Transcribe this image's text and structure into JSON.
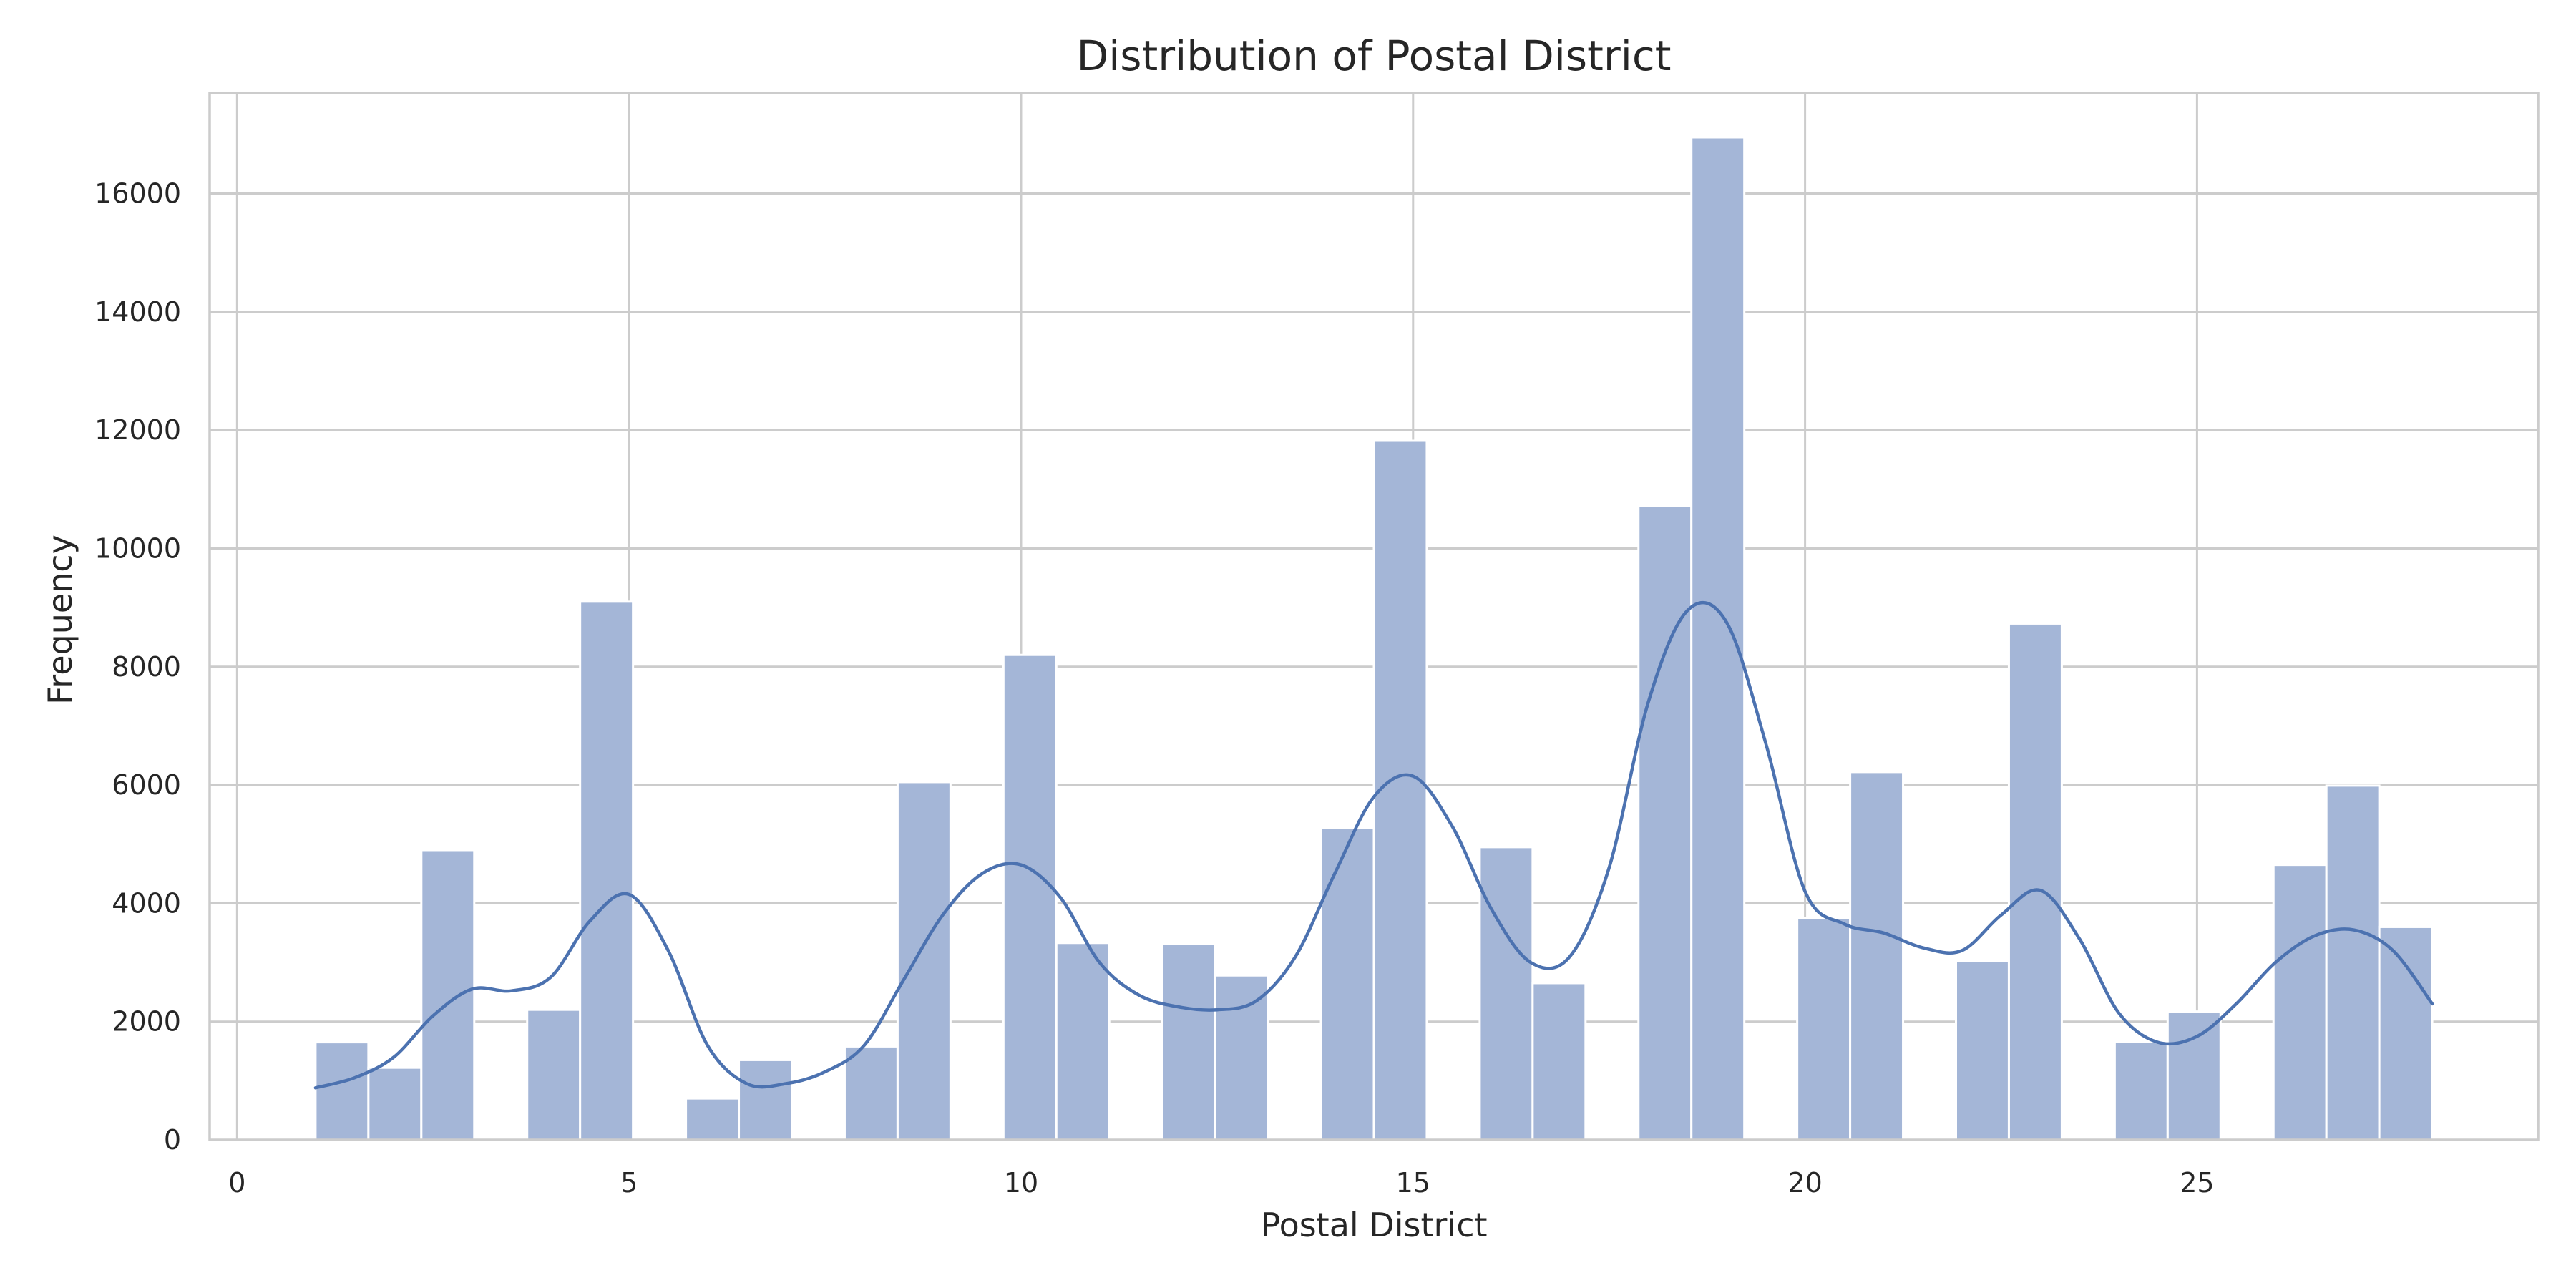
{
  "chart_data": {
    "type": "bar",
    "title": "Distribution of Postal District",
    "xlabel": "Postal District",
    "ylabel": "Frequency",
    "xlim": [
      -0.35,
      29.35
    ],
    "ylim": [
      0,
      17700
    ],
    "xticks": [
      0,
      5,
      10,
      15,
      20,
      25
    ],
    "yticks": [
      0,
      2000,
      4000,
      6000,
      8000,
      10000,
      12000,
      14000,
      16000
    ],
    "grid": true,
    "bin_width": 0.675,
    "bins": [
      {
        "x0": 1.0,
        "x1": 1.675,
        "count": 1650
      },
      {
        "x0": 1.675,
        "x1": 2.35,
        "count": 1220
      },
      {
        "x0": 2.35,
        "x1": 3.025,
        "count": 4900
      },
      {
        "x0": 3.025,
        "x1": 3.7,
        "count": 0
      },
      {
        "x0": 3.7,
        "x1": 4.375,
        "count": 2200
      },
      {
        "x0": 4.375,
        "x1": 5.05,
        "count": 9100
      },
      {
        "x0": 5.05,
        "x1": 5.725,
        "count": 0
      },
      {
        "x0": 5.725,
        "x1": 6.4,
        "count": 700
      },
      {
        "x0": 6.4,
        "x1": 7.075,
        "count": 1350
      },
      {
        "x0": 7.075,
        "x1": 7.75,
        "count": 0
      },
      {
        "x0": 7.75,
        "x1": 8.425,
        "count": 1580
      },
      {
        "x0": 8.425,
        "x1": 9.1,
        "count": 6050
      },
      {
        "x0": 9.1,
        "x1": 9.775,
        "count": 0
      },
      {
        "x0": 9.775,
        "x1": 10.45,
        "count": 8200
      },
      {
        "x0": 10.45,
        "x1": 11.125,
        "count": 3330
      },
      {
        "x0": 11.125,
        "x1": 11.8,
        "count": 0
      },
      {
        "x0": 11.8,
        "x1": 12.475,
        "count": 3320
      },
      {
        "x0": 12.475,
        "x1": 13.15,
        "count": 2780
      },
      {
        "x0": 13.15,
        "x1": 13.825,
        "count": 0
      },
      {
        "x0": 13.825,
        "x1": 14.5,
        "count": 5280
      },
      {
        "x0": 14.5,
        "x1": 15.175,
        "count": 11820
      },
      {
        "x0": 15.175,
        "x1": 15.85,
        "count": 0
      },
      {
        "x0": 15.85,
        "x1": 16.525,
        "count": 4950
      },
      {
        "x0": 16.525,
        "x1": 17.2,
        "count": 2650
      },
      {
        "x0": 17.2,
        "x1": 17.875,
        "count": 0
      },
      {
        "x0": 17.875,
        "x1": 18.55,
        "count": 10720
      },
      {
        "x0": 18.55,
        "x1": 19.225,
        "count": 16950
      },
      {
        "x0": 19.225,
        "x1": 19.9,
        "count": 0
      },
      {
        "x0": 19.9,
        "x1": 20.575,
        "count": 3750
      },
      {
        "x0": 20.575,
        "x1": 21.25,
        "count": 6220
      },
      {
        "x0": 21.25,
        "x1": 21.925,
        "count": 0
      },
      {
        "x0": 21.925,
        "x1": 22.6,
        "count": 3030
      },
      {
        "x0": 22.6,
        "x1": 23.275,
        "count": 8730
      },
      {
        "x0": 23.275,
        "x1": 23.95,
        "count": 0
      },
      {
        "x0": 23.95,
        "x1": 24.625,
        "count": 1660
      },
      {
        "x0": 24.625,
        "x1": 25.3,
        "count": 2170
      },
      {
        "x0": 25.3,
        "x1": 25.975,
        "count": 0
      },
      {
        "x0": 25.975,
        "x1": 26.65,
        "count": 4650
      },
      {
        "x0": 26.65,
        "x1": 27.325,
        "count": 5990
      },
      {
        "x0": 27.325,
        "x1": 28.0,
        "count": 3600
      }
    ],
    "kde": {
      "x": [
        1,
        1.5,
        2,
        2.5,
        3,
        3.5,
        4,
        4.5,
        5,
        5.5,
        6,
        6.5,
        7,
        7.5,
        8,
        8.5,
        9,
        9.5,
        10,
        10.5,
        11,
        11.5,
        12,
        12.5,
        13,
        13.5,
        14,
        14.5,
        15,
        15.5,
        16,
        16.5,
        17,
        17.5,
        18,
        18.5,
        19,
        19.5,
        20,
        20.5,
        21,
        21.5,
        22,
        22.5,
        23,
        23.5,
        24,
        24.5,
        25,
        25.5,
        26,
        26.5,
        27,
        27.5,
        28
      ],
      "y": [
        880,
        1050,
        1400,
        2100,
        2550,
        2520,
        2750,
        3700,
        4150,
        3200,
        1600,
        950,
        950,
        1150,
        1600,
        2700,
        3800,
        4500,
        4650,
        4100,
        3000,
        2450,
        2250,
        2200,
        2350,
        3100,
        4500,
        5800,
        6150,
        5300,
        3900,
        3000,
        3100,
        4600,
        7400,
        8950,
        8750,
        6700,
        4200,
        3650,
        3500,
        3250,
        3200,
        3800,
        4220,
        3400,
        2150,
        1650,
        1750,
        2300,
        3000,
        3450,
        3550,
        3200,
        2300
      ]
    },
    "colors": {
      "bar_fill": "#a4b6d7",
      "kde_line": "#4c72b0"
    }
  }
}
